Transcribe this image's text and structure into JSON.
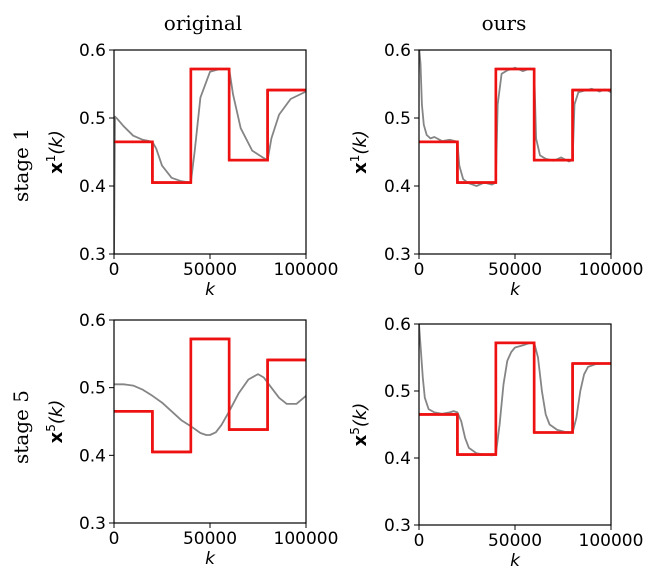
{
  "columns": [
    "original",
    "ours"
  ],
  "rows": [
    "stage 1",
    "stage 5"
  ],
  "colors": {
    "reference": "#ee1111",
    "trace": "#858585",
    "frame": "#000000"
  },
  "chart_data": [
    {
      "type": "line",
      "id": "p11",
      "xlabel": "k",
      "ylabel_bold": "x",
      "ylabel_sup": "1",
      "ylabel_rest": "(k)",
      "xlim": [
        0,
        100000
      ],
      "ylim": [
        0.3,
        0.6
      ],
      "xticks": [
        0,
        50000,
        100000
      ],
      "xtick_labels": [
        "0",
        "50000",
        "100000"
      ],
      "yticks": [
        0.3,
        0.4,
        0.5,
        0.6
      ],
      "ytick_labels": [
        "0.3",
        "0.4",
        "0.5",
        "0.6"
      ],
      "series": [
        {
          "kind": "reference",
          "x": [
            0,
            20000,
            20000,
            40000,
            40000,
            60000,
            60000,
            80000,
            80000,
            100000
          ],
          "y": [
            0.465,
            0.465,
            0.405,
            0.405,
            0.572,
            0.572,
            0.438,
            0.438,
            0.541,
            0.541
          ]
        },
        {
          "kind": "trace",
          "x": [
            0,
            500,
            2000,
            5000,
            10000,
            15000,
            20000,
            22000,
            25000,
            30000,
            35000,
            40000,
            42000,
            45000,
            50000,
            55000,
            60000,
            62000,
            66000,
            72000,
            78000,
            80000,
            82000,
            86000,
            92000,
            100000
          ],
          "y": [
            0.3,
            0.502,
            0.498,
            0.488,
            0.474,
            0.468,
            0.465,
            0.455,
            0.43,
            0.412,
            0.407,
            0.405,
            0.45,
            0.53,
            0.568,
            0.572,
            0.572,
            0.535,
            0.485,
            0.452,
            0.441,
            0.438,
            0.47,
            0.505,
            0.528,
            0.539
          ]
        }
      ]
    },
    {
      "type": "line",
      "id": "p12",
      "xlabel": "k",
      "ylabel_bold": "x",
      "ylabel_sup": "1",
      "ylabel_rest": "(k)",
      "xlim": [
        0,
        100000
      ],
      "ylim": [
        0.3,
        0.6
      ],
      "xticks": [
        0,
        50000,
        100000
      ],
      "xtick_labels": [
        "0",
        "50000",
        "100000"
      ],
      "yticks": [
        0.3,
        0.4,
        0.5,
        0.6
      ],
      "ytick_labels": [
        "0.3",
        "0.4",
        "0.5",
        "0.6"
      ],
      "series": [
        {
          "kind": "reference",
          "x": [
            0,
            20000,
            20000,
            40000,
            40000,
            60000,
            60000,
            80000,
            80000,
            100000
          ],
          "y": [
            0.465,
            0.465,
            0.405,
            0.405,
            0.572,
            0.572,
            0.438,
            0.438,
            0.541,
            0.541
          ]
        },
        {
          "kind": "trace",
          "x": [
            0,
            800,
            1500,
            2500,
            4000,
            6000,
            8000,
            12000,
            16000,
            20000,
            21000,
            23000,
            26000,
            30000,
            34000,
            38000,
            40000,
            41000,
            43000,
            46000,
            50000,
            54000,
            58000,
            60000,
            61000,
            63000,
            66000,
            70000,
            74000,
            78000,
            80000,
            81000,
            83000,
            86000,
            90000,
            94000,
            97000,
            100000
          ],
          "y": [
            0.605,
            0.58,
            0.52,
            0.49,
            0.475,
            0.47,
            0.472,
            0.466,
            0.468,
            0.465,
            0.43,
            0.41,
            0.404,
            0.4,
            0.405,
            0.402,
            0.405,
            0.52,
            0.565,
            0.57,
            0.574,
            0.569,
            0.573,
            0.57,
            0.47,
            0.445,
            0.44,
            0.437,
            0.442,
            0.436,
            0.438,
            0.52,
            0.538,
            0.54,
            0.543,
            0.539,
            0.542,
            0.538
          ]
        }
      ]
    },
    {
      "type": "line",
      "id": "p21",
      "xlabel": "k",
      "ylabel_bold": "x",
      "ylabel_sup": "5",
      "ylabel_rest": "(k)",
      "xlim": [
        0,
        100000
      ],
      "ylim": [
        0.3,
        0.6
      ],
      "xticks": [
        0,
        50000,
        100000
      ],
      "xtick_labels": [
        "0",
        "50000",
        "100000"
      ],
      "yticks": [
        0.3,
        0.4,
        0.5,
        0.6
      ],
      "ytick_labels": [
        "0.3",
        "0.4",
        "0.5",
        "0.6"
      ],
      "series": [
        {
          "kind": "reference",
          "x": [
            0,
            20000,
            20000,
            40000,
            40000,
            60000,
            60000,
            80000,
            80000,
            100000
          ],
          "y": [
            0.465,
            0.465,
            0.405,
            0.405,
            0.572,
            0.572,
            0.438,
            0.438,
            0.541,
            0.541
          ]
        },
        {
          "kind": "trace",
          "x": [
            0,
            5000,
            10000,
            15000,
            20000,
            25000,
            30000,
            35000,
            40000,
            45000,
            48000,
            50000,
            53000,
            56000,
            60000,
            65000,
            70000,
            75000,
            78000,
            82000,
            86000,
            90000,
            95000,
            100000
          ],
          "y": [
            0.505,
            0.505,
            0.503,
            0.497,
            0.488,
            0.478,
            0.465,
            0.452,
            0.443,
            0.433,
            0.43,
            0.43,
            0.434,
            0.445,
            0.465,
            0.492,
            0.512,
            0.52,
            0.515,
            0.5,
            0.485,
            0.476,
            0.476,
            0.488
          ]
        }
      ]
    },
    {
      "type": "line",
      "id": "p22",
      "xlabel": "k",
      "ylabel_bold": "x",
      "ylabel_sup": "5",
      "ylabel_rest": "(k)",
      "xlim": [
        0,
        100000
      ],
      "ylim": [
        0.3,
        0.6
      ],
      "xticks": [
        0,
        50000,
        100000
      ],
      "xtick_labels": [
        "0",
        "50000",
        "100000"
      ],
      "yticks": [
        0.3,
        0.4,
        0.5,
        0.6
      ],
      "ytick_labels": [
        "0.3",
        "0.4",
        "0.5",
        "0.6"
      ],
      "series": [
        {
          "kind": "reference",
          "x": [
            0,
            20000,
            20000,
            40000,
            40000,
            60000,
            60000,
            80000,
            80000,
            100000
          ],
          "y": [
            0.465,
            0.465,
            0.405,
            0.405,
            0.572,
            0.572,
            0.438,
            0.438,
            0.541,
            0.541
          ]
        },
        {
          "kind": "trace",
          "x": [
            0,
            1000,
            2000,
            3000,
            5000,
            8000,
            12000,
            16000,
            18000,
            20000,
            22000,
            24000,
            26000,
            30000,
            34000,
            38000,
            40000,
            42000,
            44000,
            46000,
            48000,
            50000,
            54000,
            58000,
            60000,
            62000,
            64000,
            66000,
            68000,
            72000,
            76000,
            80000,
            82000,
            84000,
            86000,
            88000,
            92000,
            96000,
            100000
          ],
          "y": [
            0.6,
            0.56,
            0.52,
            0.49,
            0.473,
            0.468,
            0.466,
            0.468,
            0.47,
            0.468,
            0.455,
            0.43,
            0.415,
            0.407,
            0.405,
            0.404,
            0.405,
            0.45,
            0.51,
            0.545,
            0.558,
            0.565,
            0.568,
            0.572,
            0.572,
            0.55,
            0.5,
            0.465,
            0.45,
            0.442,
            0.439,
            0.438,
            0.46,
            0.5,
            0.525,
            0.536,
            0.54,
            0.541,
            0.541
          ]
        }
      ]
    }
  ]
}
